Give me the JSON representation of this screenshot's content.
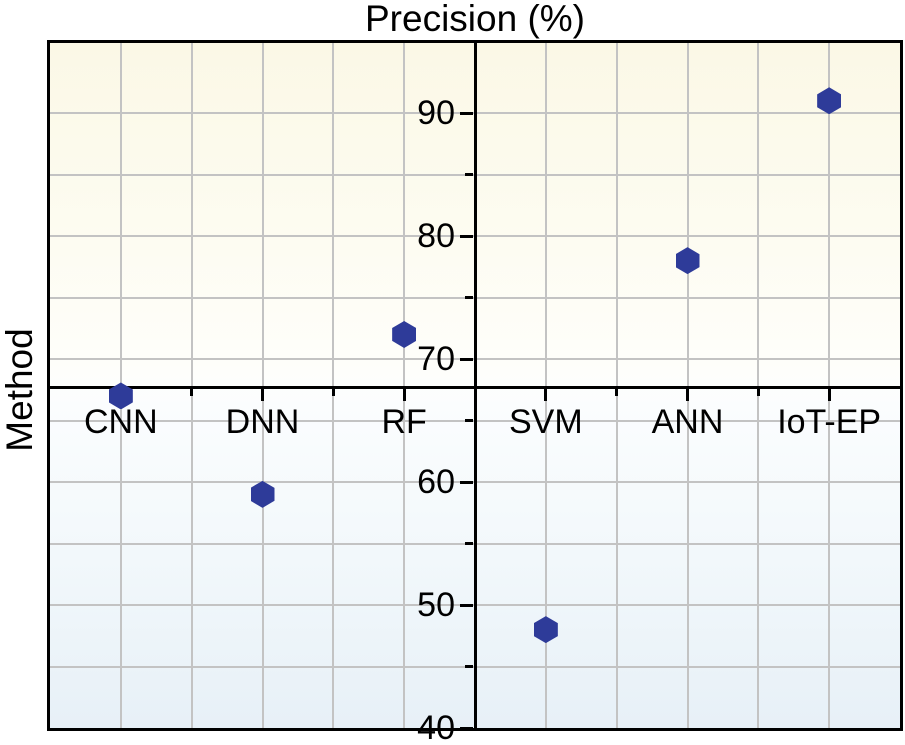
{
  "chart_data": {
    "type": "scatter",
    "title": "Precision (%)",
    "left_axis_label": "Method",
    "categories": [
      "CNN",
      "DNN",
      "RF",
      "SVM",
      "ANN",
      "IoT-EP"
    ],
    "series": [
      {
        "name": "Precision (%)",
        "values": [
          67,
          59,
          72,
          48,
          78,
          91
        ]
      }
    ],
    "ylim": [
      40,
      95.7
    ],
    "ytick_values": [
      40,
      50,
      60,
      70,
      80,
      90
    ],
    "ytick_labels": [
      "40",
      "50",
      "60",
      "70",
      "80",
      "90"
    ],
    "minor_tick_values": [
      45,
      55,
      65,
      75,
      85
    ],
    "gridline_values": [
      45,
      50,
      55,
      60,
      65,
      70,
      75,
      80,
      85,
      90
    ],
    "x_axis_cross_value": 67.7,
    "grid": true,
    "legend": "none",
    "marker": "hexagon",
    "colors": {
      "marker": "#2e3b99",
      "axis": "#000000",
      "grid": "#c3c3c3",
      "background_top": "#fbf8e6",
      "background_bottom": "#e7f0f7",
      "text": "#000000"
    }
  }
}
